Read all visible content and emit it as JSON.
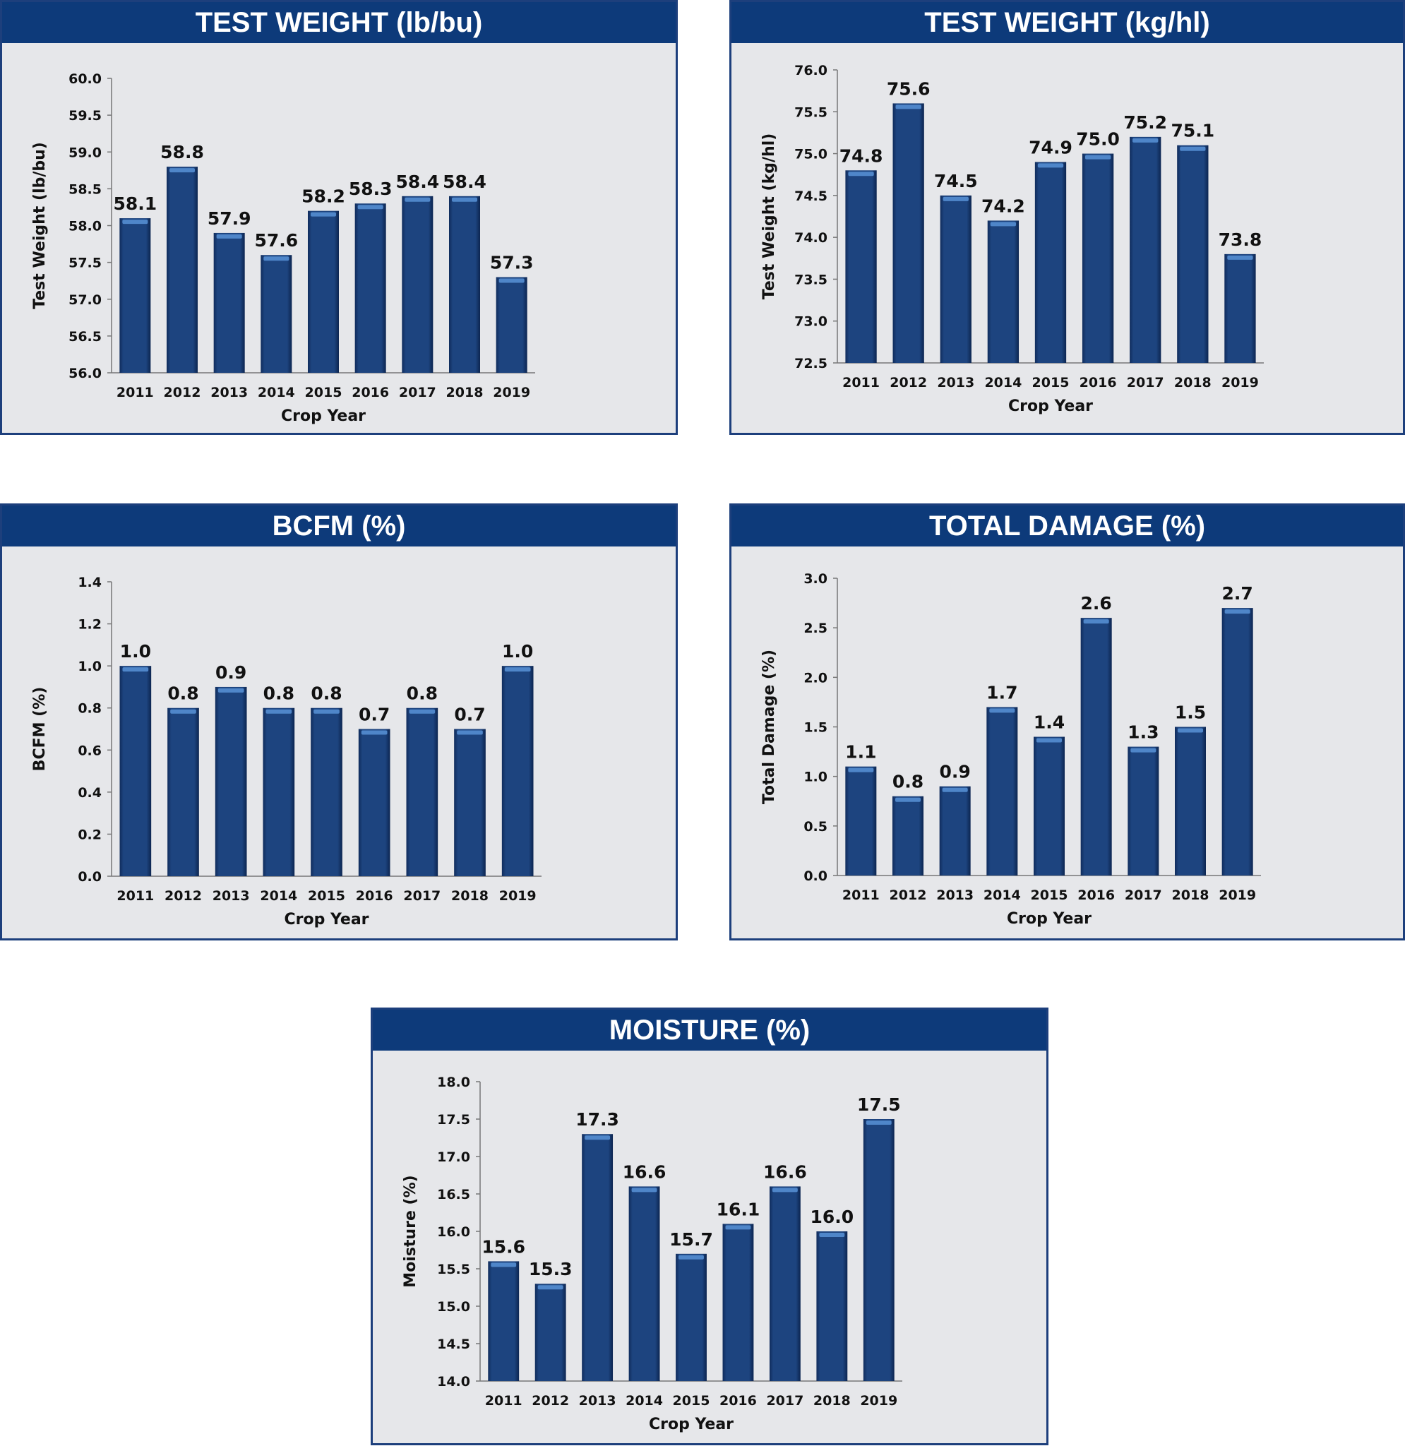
{
  "chart_data": [
    {
      "type": "bar",
      "title": "TEST WEIGHT (lb/bu)",
      "ylabel": "Test Weight (lb/bu)",
      "xlabel": "Crop Year",
      "categories": [
        "2011",
        "2012",
        "2013",
        "2014",
        "2015",
        "2016",
        "2017",
        "2018",
        "2019"
      ],
      "values": [
        58.1,
        58.8,
        57.9,
        57.6,
        58.2,
        58.3,
        58.4,
        58.4,
        57.3
      ],
      "value_labels": [
        "58.1",
        "58.8",
        "57.9",
        "57.6",
        "58.2",
        "58.3",
        "58.4",
        "58.4",
        "57.3"
      ],
      "ylim": [
        56.0,
        60.0
      ],
      "yticks": [
        "56.0",
        "56.5",
        "57.0",
        "57.5",
        "58.0",
        "58.5",
        "59.0",
        "59.5",
        "60.0"
      ]
    },
    {
      "type": "bar",
      "title": "TEST WEIGHT (kg/hl)",
      "ylabel": "Test Weight (kg/hl)",
      "xlabel": "Crop Year",
      "categories": [
        "2011",
        "2012",
        "2013",
        "2014",
        "2015",
        "2016",
        "2017",
        "2018",
        "2019"
      ],
      "values": [
        74.8,
        75.6,
        74.5,
        74.2,
        74.9,
        75.0,
        75.2,
        75.1,
        73.8
      ],
      "value_labels": [
        "74.8",
        "75.6",
        "74.5",
        "74.2",
        "74.9",
        "75.0",
        "75.2",
        "75.1",
        "73.8"
      ],
      "ylim": [
        72.5,
        76.0
      ],
      "yticks": [
        "72.5",
        "73.0",
        "73.5",
        "74.0",
        "74.5",
        "75.0",
        "75.5",
        "76.0"
      ]
    },
    {
      "type": "bar",
      "title": "BCFM (%)",
      "ylabel": "BCFM (%)",
      "xlabel": "Crop Year",
      "categories": [
        "2011",
        "2012",
        "2013",
        "2014",
        "2015",
        "2016",
        "2017",
        "2018",
        "2019"
      ],
      "values": [
        1.0,
        0.8,
        0.9,
        0.8,
        0.8,
        0.7,
        0.8,
        0.7,
        1.0
      ],
      "value_labels": [
        "1.0",
        "0.8",
        "0.9",
        "0.8",
        "0.8",
        "0.7",
        "0.8",
        "0.7",
        "1.0"
      ],
      "ylim": [
        0.0,
        1.4
      ],
      "yticks": [
        "0.0",
        "0.2",
        "0.4",
        "0.6",
        "0.8",
        "1.0",
        "1.2",
        "1.4"
      ]
    },
    {
      "type": "bar",
      "title": "TOTAL DAMAGE (%)",
      "ylabel": "Total Damage (%)",
      "xlabel": "Crop Year",
      "categories": [
        "2011",
        "2012",
        "2013",
        "2014",
        "2015",
        "2016",
        "2017",
        "2018",
        "2019"
      ],
      "values": [
        1.1,
        0.8,
        0.9,
        1.7,
        1.4,
        2.6,
        1.3,
        1.5,
        2.7
      ],
      "value_labels": [
        "1.1",
        "0.8",
        "0.9",
        "1.7",
        "1.4",
        "2.6",
        "1.3",
        "1.5",
        "2.7"
      ],
      "ylim": [
        0.0,
        3.0
      ],
      "yticks": [
        "0.0",
        "0.5",
        "1.0",
        "1.5",
        "2.0",
        "2.5",
        "3.0"
      ]
    },
    {
      "type": "bar",
      "title": "MOISTURE (%)",
      "ylabel": "Moisture (%)",
      "xlabel": "Crop Year",
      "categories": [
        "2011",
        "2012",
        "2013",
        "2014",
        "2015",
        "2016",
        "2017",
        "2018",
        "2019"
      ],
      "values": [
        15.6,
        15.3,
        17.3,
        16.6,
        15.7,
        16.1,
        16.6,
        16.0,
        17.5
      ],
      "value_labels": [
        "15.6",
        "15.3",
        "17.3",
        "16.6",
        "15.7",
        "16.1",
        "16.6",
        "16.0",
        "17.5"
      ],
      "ylim": [
        14.0,
        18.0
      ],
      "yticks": [
        "14.0",
        "14.5",
        "15.0",
        "15.5",
        "16.0",
        "16.5",
        "17.0",
        "17.5",
        "18.0"
      ]
    }
  ],
  "colors": {
    "header": "#0d3a7a",
    "bar": "#1d447f",
    "panel_bg": "#e6e7ea"
  }
}
